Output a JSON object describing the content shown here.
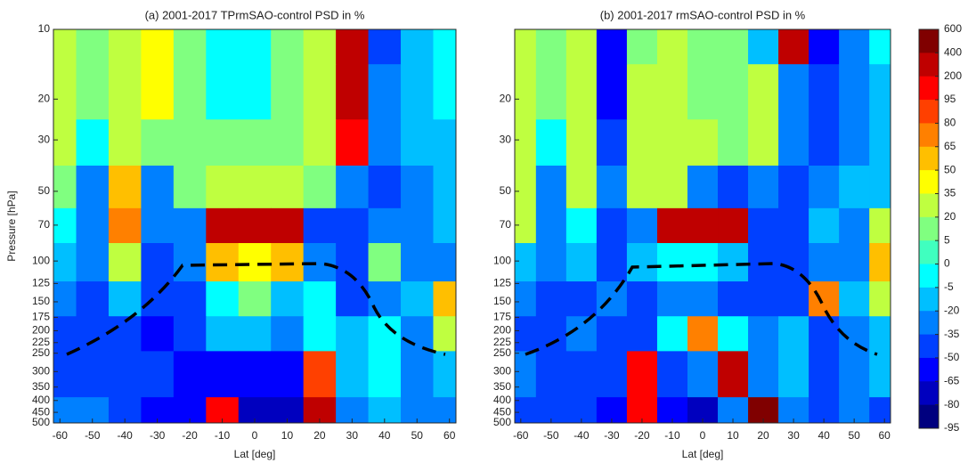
{
  "chart_data": [
    {
      "type": "heatmap",
      "title": "(a) 2001-2017 TPrmSAO-control PSD in %",
      "xlabel": "Lat [deg]",
      "ylabel": "Pressure [hPa]",
      "x": [
        -60,
        -50,
        -40,
        -30,
        -20,
        -10,
        0,
        10,
        20,
        30,
        40,
        50,
        60
      ],
      "y": [
        10,
        20,
        30,
        50,
        70,
        100,
        150,
        200,
        300,
        500
      ],
      "z": [
        [
          20,
          5,
          20,
          35,
          5,
          -5,
          -5,
          5,
          20,
          200,
          -50,
          -20,
          -5
        ],
        [
          20,
          5,
          20,
          35,
          5,
          -5,
          -5,
          5,
          20,
          200,
          -35,
          -20,
          -5
        ],
        [
          20,
          -5,
          20,
          5,
          5,
          5,
          5,
          5,
          20,
          95,
          -35,
          -20,
          -20
        ],
        [
          5,
          -35,
          50,
          -35,
          5,
          20,
          20,
          20,
          5,
          -35,
          -50,
          -35,
          -20
        ],
        [
          -5,
          -35,
          65,
          -35,
          -35,
          200,
          200,
          200,
          -50,
          -50,
          -35,
          -35,
          -20
        ],
        [
          -20,
          -35,
          20,
          -50,
          -35,
          50,
          35,
          50,
          -35,
          -50,
          5,
          -35,
          -35
        ],
        [
          -35,
          -50,
          -20,
          -50,
          -50,
          -5,
          5,
          -20,
          -5,
          -50,
          -35,
          -20,
          50
        ],
        [
          -50,
          -50,
          -50,
          -65,
          -50,
          -20,
          -20,
          -35,
          -5,
          -20,
          -5,
          -35,
          20
        ],
        [
          -50,
          -50,
          -50,
          -50,
          -65,
          -65,
          -65,
          -65,
          80,
          -20,
          -5,
          -35,
          -20
        ],
        [
          -35,
          -35,
          -50,
          -65,
          -65,
          95,
          -80,
          -80,
          200,
          -35,
          -20,
          -35,
          -35
        ]
      ],
      "xlim": [
        -62,
        62
      ],
      "ylim": [
        10,
        500
      ],
      "ylog": true,
      "yreverse": true,
      "xticks": [
        -60,
        -50,
        -40,
        -30,
        -20,
        -10,
        0,
        10,
        20,
        30,
        40,
        50,
        60
      ],
      "yticks": [
        10,
        20,
        30,
        50,
        70,
        100,
        125,
        150,
        175,
        200,
        225,
        250,
        300,
        350,
        400,
        450,
        500
      ]
    },
    {
      "type": "heatmap",
      "title": "(b) 2001-2017 rmSAO-control PSD in %",
      "xlabel": "Lat [deg]",
      "x": [
        -60,
        -50,
        -40,
        -30,
        -20,
        -10,
        0,
        10,
        20,
        30,
        40,
        50,
        60
      ],
      "y": [
        10,
        20,
        30,
        50,
        70,
        100,
        150,
        200,
        300,
        500
      ],
      "z": [
        [
          20,
          5,
          20,
          -65,
          5,
          20,
          5,
          5,
          -20,
          200,
          -65,
          -35,
          -5
        ],
        [
          20,
          5,
          20,
          -65,
          20,
          20,
          5,
          5,
          20,
          -35,
          -50,
          -35,
          -20
        ],
        [
          20,
          -5,
          20,
          -50,
          20,
          20,
          20,
          5,
          20,
          -35,
          -50,
          -35,
          -20
        ],
        [
          20,
          -35,
          20,
          -35,
          20,
          20,
          -35,
          -50,
          -35,
          -50,
          -35,
          -20,
          -20
        ],
        [
          20,
          -35,
          -5,
          -50,
          -35,
          200,
          200,
          200,
          -50,
          -50,
          -20,
          -35,
          20
        ],
        [
          -20,
          -35,
          -20,
          -50,
          -20,
          -5,
          -5,
          -20,
          -50,
          -50,
          -35,
          -35,
          50
        ],
        [
          -35,
          -50,
          -50,
          -35,
          -50,
          -35,
          -35,
          -50,
          -50,
          -50,
          65,
          -20,
          20
        ],
        [
          -50,
          -50,
          -35,
          -50,
          -50,
          -5,
          65,
          -5,
          -35,
          -20,
          -50,
          -35,
          -20
        ],
        [
          -35,
          -50,
          -50,
          -50,
          95,
          -50,
          -35,
          200,
          -35,
          -20,
          -50,
          -35,
          -20
        ],
        [
          -50,
          -50,
          -50,
          -65,
          95,
          -65,
          -80,
          -35,
          400,
          -35,
          -50,
          -35,
          -50
        ]
      ],
      "xlim": [
        -62,
        62
      ],
      "ylim": [
        10,
        500
      ],
      "ylog": true,
      "yreverse": true,
      "xticks": [
        -60,
        -50,
        -40,
        -30,
        -20,
        -10,
        0,
        10,
        20,
        30,
        40,
        50,
        60
      ],
      "yticks": [
        20,
        30,
        50,
        70,
        100,
        125,
        150,
        175,
        200,
        225,
        250,
        300,
        350,
        400,
        450,
        500
      ]
    }
  ],
  "colorbar": {
    "ticks": [
      600,
      400,
      200,
      95,
      80,
      65,
      50,
      35,
      20,
      5,
      0,
      -5,
      -20,
      -35,
      -50,
      -65,
      -80,
      -95
    ],
    "colors": [
      "#800000",
      "#bf0000",
      "#ff0000",
      "#ff4000",
      "#ff8000",
      "#ffbf00",
      "#ffff00",
      "#bfff40",
      "#80ff80",
      "#40ffbf",
      "#00ffff",
      "#00bfff",
      "#0080ff",
      "#0040ff",
      "#0000ff",
      "#0000bf",
      "#00007f"
    ]
  }
}
